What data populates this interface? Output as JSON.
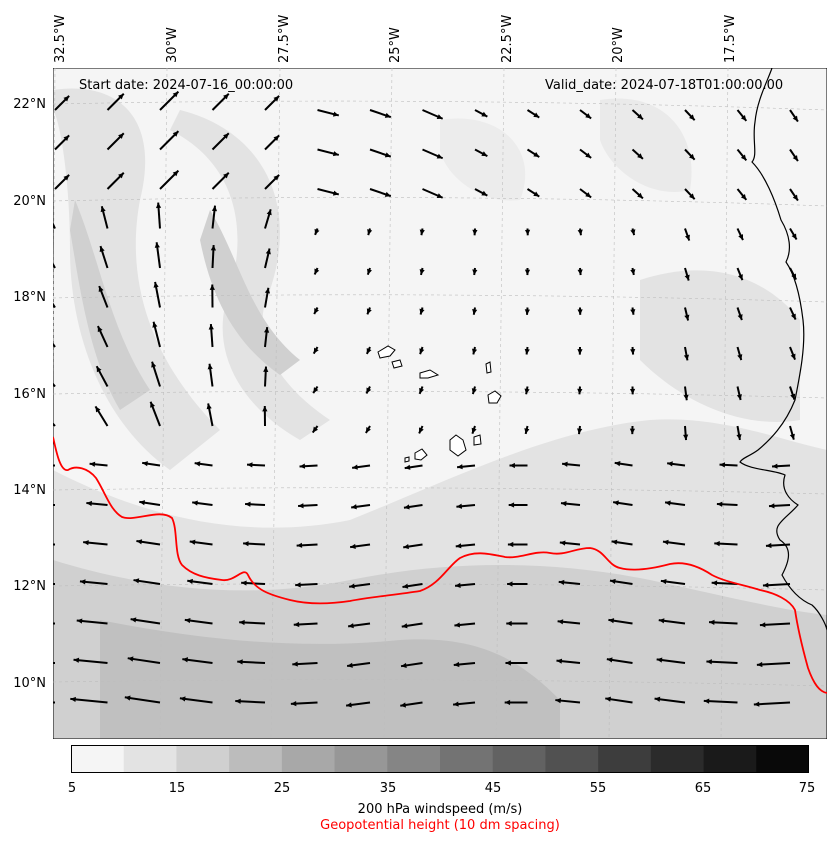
{
  "map": {
    "start_date": "Start date: 2024-07-16_00:00:00",
    "valid_date": "Valid_date: 2024-07-18T01:00:00.00",
    "lon_labels": [
      "32.5°W",
      "30°W",
      "27.5°W",
      "25°W",
      "22.5°W",
      "20°W",
      "17.5°W"
    ],
    "lat_labels": [
      "22°N",
      "20°N",
      "18°N",
      "16°N",
      "14°N",
      "12°N",
      "10°N"
    ],
    "colors": {
      "contour": "#ff0000",
      "coast": "#000000",
      "arrow": "#000000"
    }
  },
  "colorbar": {
    "ticks": [
      "5",
      "15",
      "25",
      "35",
      "45",
      "55",
      "65",
      "75"
    ],
    "levels": [
      "#f5f5f5",
      "#e3e3e3",
      "#d0d0d0",
      "#bcbcbc",
      "#a8a8a8",
      "#979797",
      "#858585",
      "#737373",
      "#626262",
      "#515151",
      "#3d3d3d",
      "#2b2b2b",
      "#1a1a1a",
      "#090909"
    ],
    "label": "200 hPa windspeed (m/s)",
    "sublabel": "Geopotential height (10 dm spacing)",
    "sublabel_color": "#ff0000"
  }
}
